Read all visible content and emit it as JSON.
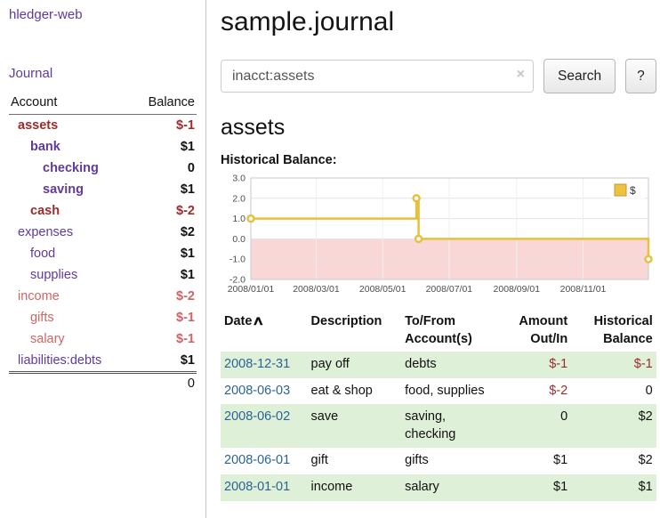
{
  "sidebar": {
    "app_title": "hledger-web",
    "nav": {
      "journal": "Journal"
    },
    "accounts": {
      "col_account": "Account",
      "col_balance": "Balance",
      "rows": [
        {
          "name": "assets",
          "balance": "$-1"
        },
        {
          "name": "bank",
          "balance": "$1"
        },
        {
          "name": "checking",
          "balance": "0"
        },
        {
          "name": "saving",
          "balance": "$1"
        },
        {
          "name": "cash",
          "balance": "$-2"
        },
        {
          "name": "expenses",
          "balance": "$2"
        },
        {
          "name": "food",
          "balance": "$1"
        },
        {
          "name": "supplies",
          "balance": "$1"
        },
        {
          "name": "income",
          "balance": "$-2"
        },
        {
          "name": "gifts",
          "balance": "$-1"
        },
        {
          "name": "salary",
          "balance": "$-1"
        },
        {
          "name": "liabilities:debts",
          "balance": "$1"
        }
      ],
      "total": "0"
    }
  },
  "main": {
    "title": "sample.journal",
    "search": {
      "value": "inacct:assets",
      "clear_icon": "×",
      "button": "Search",
      "help_button": "?"
    },
    "account_heading": "assets",
    "chart_heading": "Historical Balance:"
  },
  "chart_data": {
    "type": "line",
    "step": true,
    "title": "Historical Balance:",
    "legend": [
      {
        "label": "$",
        "color": "#edc240"
      }
    ],
    "legend_position": "top-right",
    "grid": true,
    "ylim": [
      -2,
      3
    ],
    "yticks": [
      "3.0",
      "2.0",
      "1.0",
      "0.0",
      "-1.0",
      "-2.0"
    ],
    "x_range_days": [
      0,
      365
    ],
    "xticks": [
      {
        "label": "2008/01/01",
        "day": 0
      },
      {
        "label": "2008/03/01",
        "day": 60
      },
      {
        "label": "2008/05/01",
        "day": 121
      },
      {
        "label": "2008/07/01",
        "day": 182
      },
      {
        "label": "2008/09/01",
        "day": 244
      },
      {
        "label": "2008/11/01",
        "day": 305
      }
    ],
    "series": [
      {
        "name": "$",
        "points": [
          {
            "date": "2008-01-01",
            "day": 0,
            "value": 1
          },
          {
            "date": "2008-06-01",
            "day": 152,
            "value": 2
          },
          {
            "date": "2008-06-03",
            "day": 154,
            "value": 0
          },
          {
            "date": "2008-12-31",
            "day": 365,
            "value": -1
          }
        ]
      }
    ],
    "line_color": "#e7c13d",
    "marker_fill": "#ffffff",
    "negative_region_color": "#fad7d7",
    "grid_color": "#e3e3e3",
    "border_color": "#c8c8c8"
  },
  "register": {
    "headers": {
      "date": "Date",
      "description": "Description",
      "account": "To/From\nAccount(s)",
      "amount": "Amount\nOut/In",
      "balance": "Historical\nBalance"
    },
    "sort_icon": "∧",
    "rows": [
      {
        "date": "2008-12-31",
        "description": "pay off",
        "accounts": "debts",
        "amount": "$-1",
        "balance": "$-1"
      },
      {
        "date": "2008-06-03",
        "description": "eat & shop",
        "accounts": "food, supplies",
        "amount": "$-2",
        "balance": "0"
      },
      {
        "date": "2008-06-02",
        "description": "save",
        "accounts": "saving,\nchecking",
        "amount": "0",
        "balance": "$2"
      },
      {
        "date": "2008-06-01",
        "description": "gift",
        "accounts": "gifts",
        "amount": "$1",
        "balance": "$2"
      },
      {
        "date": "2008-01-01",
        "description": "income",
        "accounts": "salary",
        "amount": "$1",
        "balance": "$1"
      }
    ]
  }
}
